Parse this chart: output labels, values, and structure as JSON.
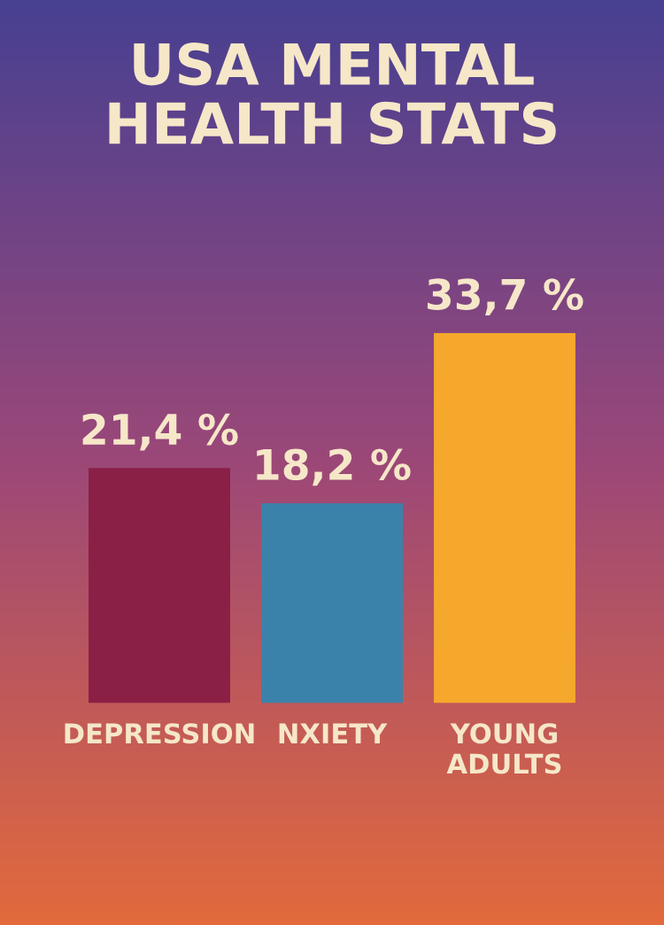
{
  "chart_data": {
    "type": "bar",
    "title": "USA MENTAL\nHEALTH STATS",
    "categories": [
      "DEPRESSION",
      "NXIETY",
      "YOUNG\nADULTS"
    ],
    "values": [
      21.4,
      18.2,
      33.7
    ],
    "colors": [
      "#8a2045",
      "#3b82aa",
      "#f5a82c"
    ],
    "value_labels": [
      "21,4 %",
      "18,2 %",
      "33,7 %"
    ],
    "grid": false,
    "legend": false
  }
}
